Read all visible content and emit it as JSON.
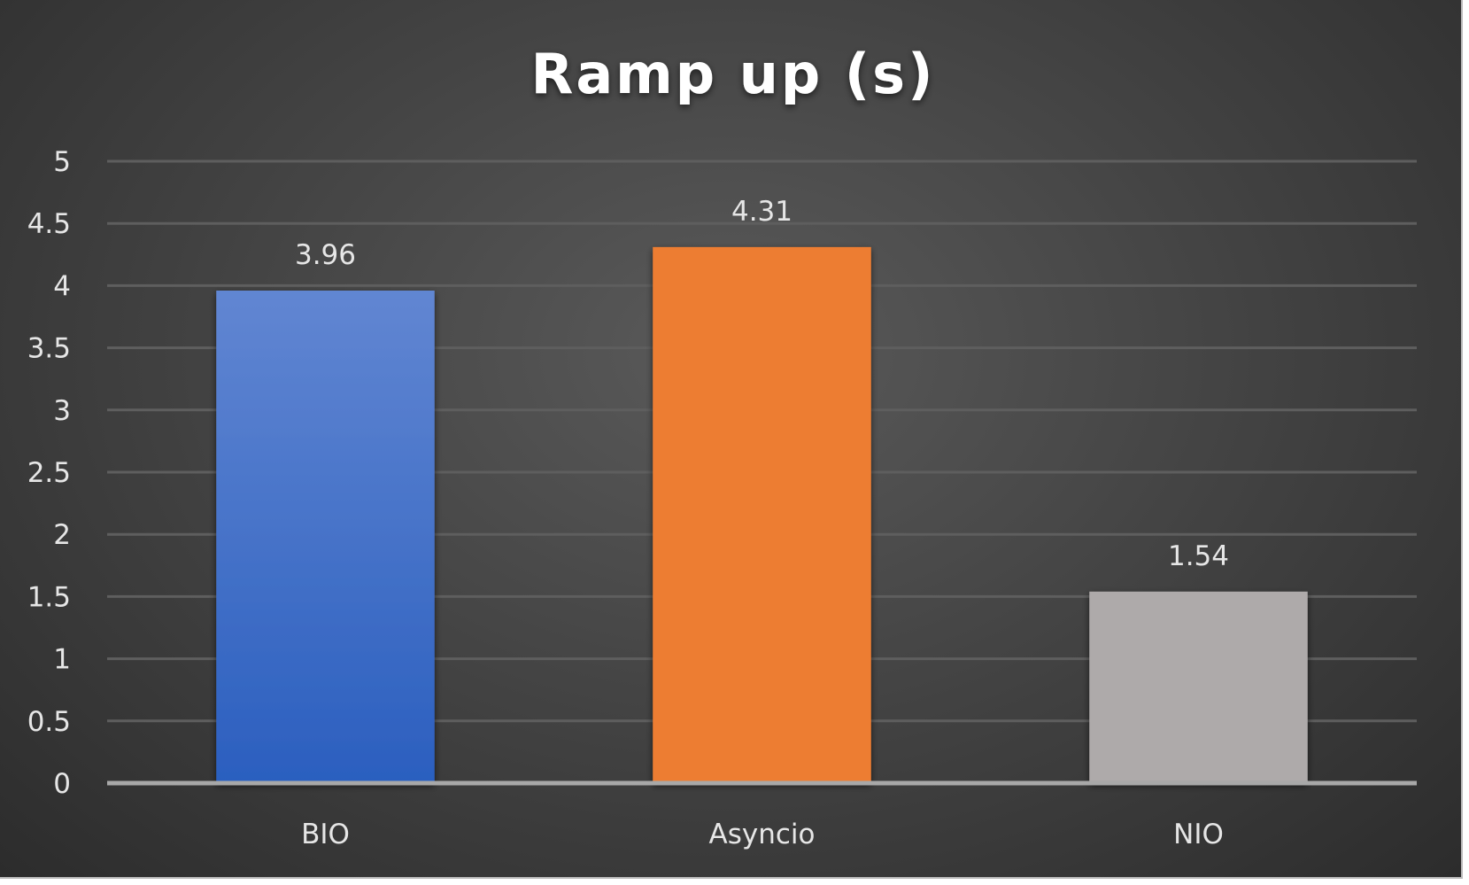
{
  "chart_data": {
    "type": "bar",
    "title": "Ramp up (s)",
    "categories": [
      "BIO",
      "Asyncio",
      "NIO"
    ],
    "values": [
      3.96,
      4.31,
      1.54
    ],
    "data_labels": [
      "3.96",
      "4.31",
      "1.54"
    ],
    "colors": [
      "#3b6fcc",
      "#ed7d31",
      "#aeaaaa"
    ],
    "ylim": [
      0,
      5
    ],
    "yticks": [
      "0",
      "0.5",
      "1",
      "1.5",
      "2",
      "2.5",
      "3",
      "3.5",
      "4",
      "4.5",
      "5"
    ],
    "grid": true,
    "legend": "none"
  }
}
